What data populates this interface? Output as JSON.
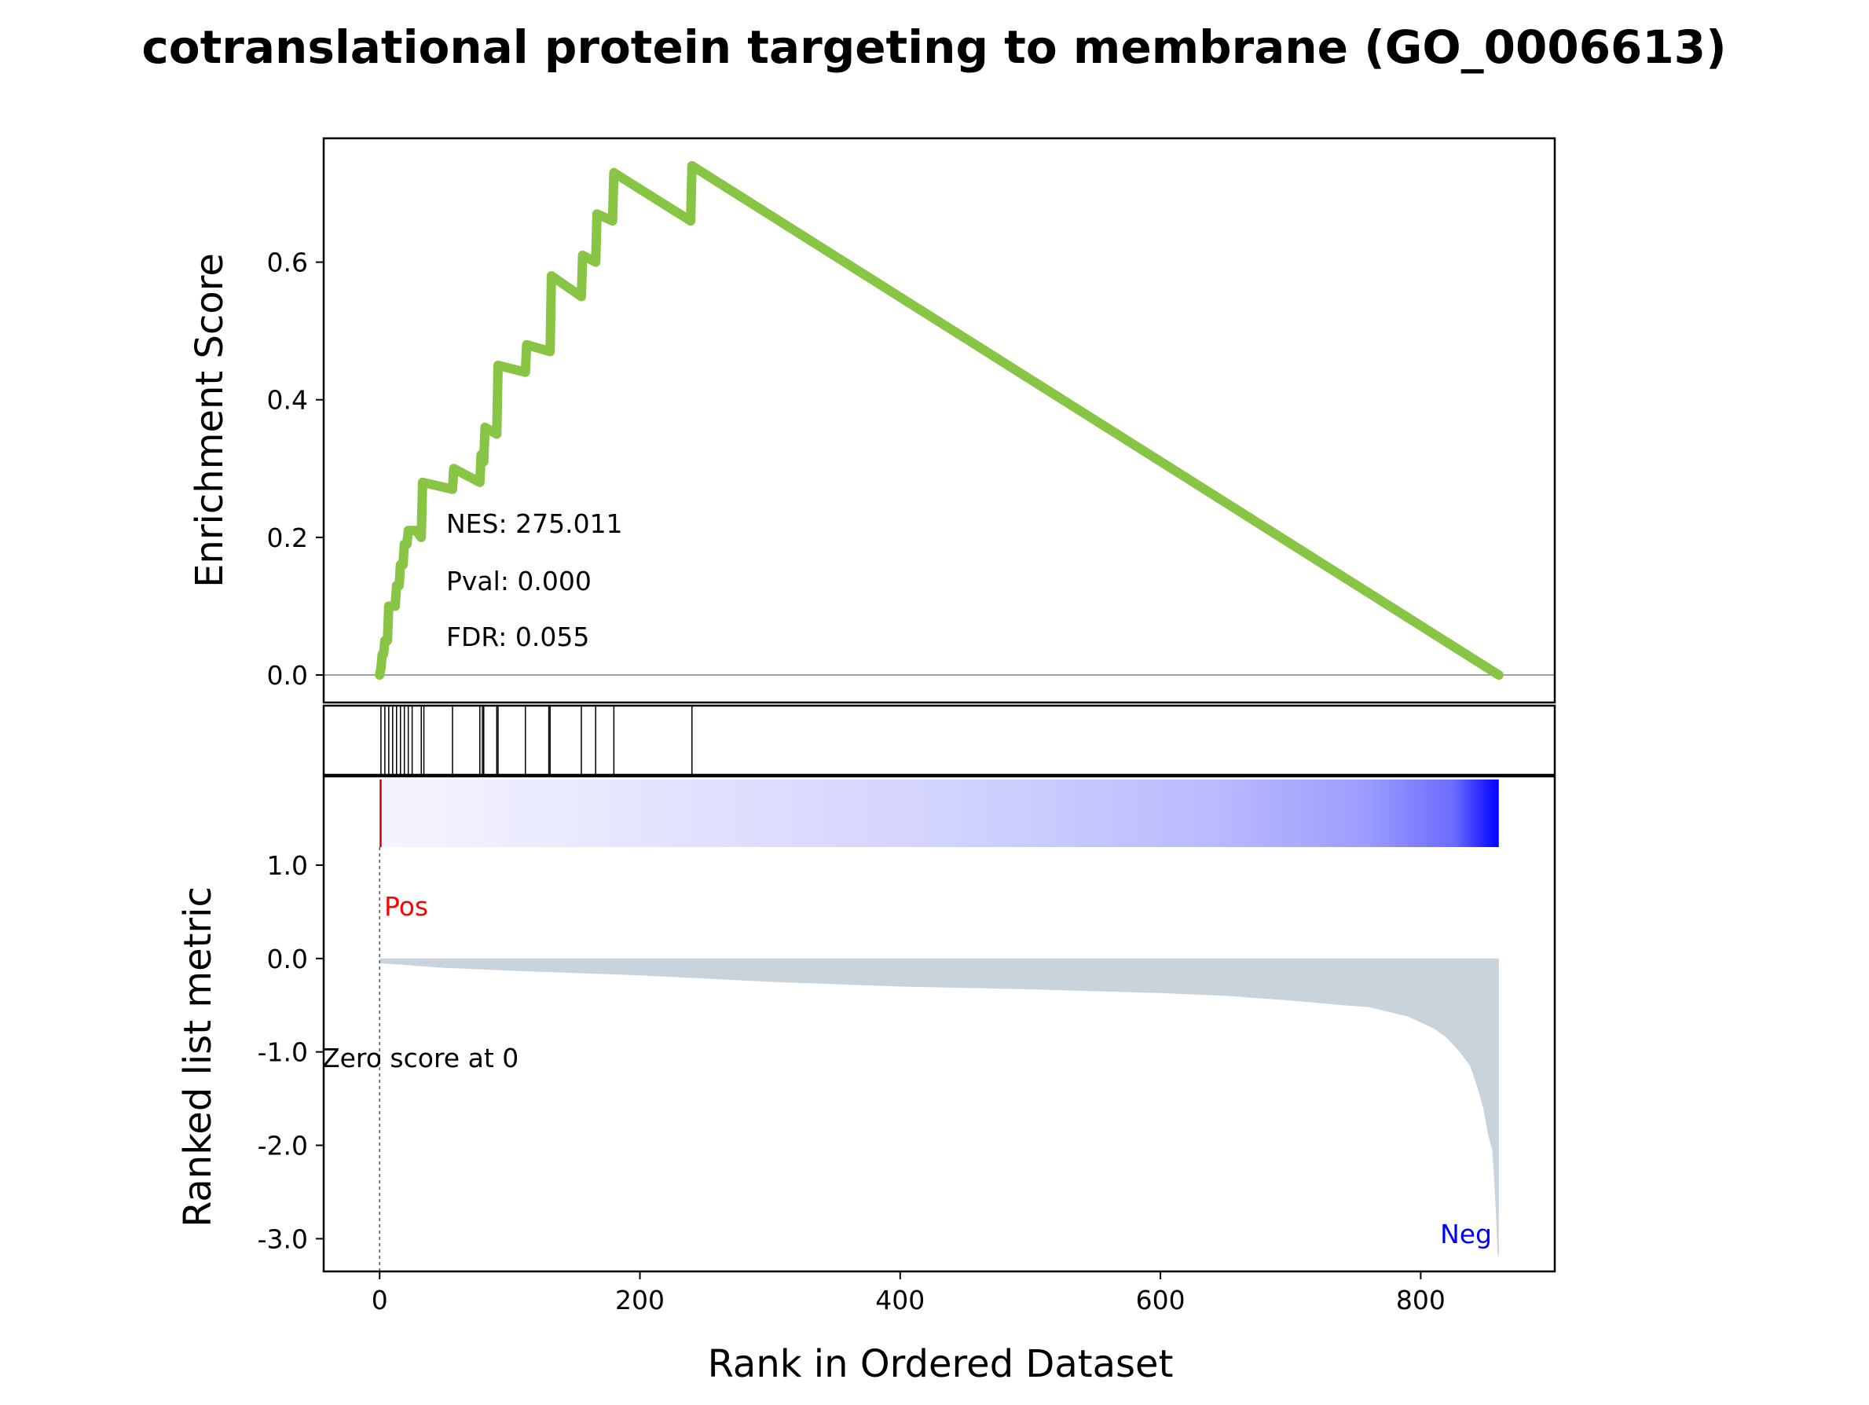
{
  "title": "cotranslational protein targeting to membrane (GO_0006613)",
  "colors": {
    "es_line": "#88c544",
    "metric_fill": "#c8d3dc",
    "pos_label": "#ff0000",
    "neg_label": "#0000ff",
    "zero_line": "#808080",
    "frame": "#000000"
  },
  "stats": {
    "nes": "NES: 275.011",
    "pval": "Pval: 0.000",
    "fdr": "FDR: 0.055"
  },
  "annotations": {
    "pos": "Pos",
    "neg": "Neg",
    "zero_score": "Zero score at 0"
  },
  "chart_data": {
    "type": "line",
    "xlabel": "Rank in Ordered Dataset",
    "xlim": [
      -43,
      903
    ],
    "xticks": [
      0,
      200,
      400,
      600,
      800
    ],
    "xtick_labels": [
      "0",
      "200",
      "400",
      "600",
      "800"
    ],
    "total_genes": 860,
    "enrichment": {
      "ylabel": "Enrichment Score",
      "ylim": [
        -0.04,
        0.78
      ],
      "yticks": [
        0.0,
        0.2,
        0.4,
        0.6
      ],
      "ytick_labels": [
        "0.0",
        "0.2",
        "0.4",
        "0.6"
      ],
      "points": [
        [
          0,
          0.0
        ],
        [
          1,
          0.01
        ],
        [
          2,
          0.03
        ],
        [
          3,
          0.03
        ],
        [
          4,
          0.05
        ],
        [
          6,
          0.05
        ],
        [
          7,
          0.1
        ],
        [
          12,
          0.1
        ],
        [
          13,
          0.13
        ],
        [
          15,
          0.13
        ],
        [
          16,
          0.16
        ],
        [
          18,
          0.16
        ],
        [
          19,
          0.19
        ],
        [
          21,
          0.19
        ],
        [
          22,
          0.21
        ],
        [
          28,
          0.21
        ],
        [
          32,
          0.2
        ],
        [
          33,
          0.28
        ],
        [
          56,
          0.27
        ],
        [
          57,
          0.3
        ],
        [
          77,
          0.28
        ],
        [
          78,
          0.32
        ],
        [
          80,
          0.31
        ],
        [
          81,
          0.36
        ],
        [
          90,
          0.35
        ],
        [
          91,
          0.45
        ],
        [
          112,
          0.44
        ],
        [
          113,
          0.48
        ],
        [
          131,
          0.47
        ],
        [
          132,
          0.58
        ],
        [
          155,
          0.55
        ],
        [
          156,
          0.61
        ],
        [
          166,
          0.6
        ],
        [
          167,
          0.67
        ],
        [
          179,
          0.66
        ],
        [
          180,
          0.73
        ],
        [
          239,
          0.66
        ],
        [
          240,
          0.74
        ],
        [
          860,
          0.0
        ]
      ]
    },
    "hits": [
      1,
      4,
      7,
      10,
      13,
      16,
      19,
      22,
      25,
      32,
      34,
      56,
      77,
      79,
      80,
      90,
      91,
      112,
      130,
      131,
      155,
      166,
      180,
      240
    ],
    "ranked_metric": {
      "ylabel": "Ranked list metric",
      "ylim": [
        -3.35,
        1.95
      ],
      "yticks": [
        1.0,
        0.0,
        -1.0,
        -2.0,
        -3.0
      ],
      "ytick_labels": [
        "1.0",
        "0.0",
        "-1.0",
        "-2.0",
        "-3.0"
      ],
      "zero_score_rank": 0,
      "profile": [
        [
          0,
          -0.05
        ],
        [
          50,
          -0.1
        ],
        [
          100,
          -0.13
        ],
        [
          200,
          -0.18
        ],
        [
          300,
          -0.25
        ],
        [
          400,
          -0.3
        ],
        [
          500,
          -0.33
        ],
        [
          600,
          -0.37
        ],
        [
          650,
          -0.4
        ],
        [
          700,
          -0.45
        ],
        [
          740,
          -0.5
        ],
        [
          760,
          -0.52
        ],
        [
          790,
          -0.62
        ],
        [
          810,
          -0.75
        ],
        [
          820,
          -0.85
        ],
        [
          830,
          -1.0
        ],
        [
          838,
          -1.15
        ],
        [
          844,
          -1.4
        ],
        [
          848,
          -1.6
        ],
        [
          852,
          -1.9
        ],
        [
          855,
          -2.05
        ],
        [
          857,
          -2.5
        ],
        [
          858,
          -2.8
        ],
        [
          859,
          -3.15
        ],
        [
          860,
          -3.2
        ]
      ]
    },
    "colorbar_gradient": [
      "#f5f5ff",
      "#e0e0ff",
      "#cfcfff",
      "#b9b9ff",
      "#9d9dff",
      "#6b6bff",
      "#0000ff"
    ]
  }
}
